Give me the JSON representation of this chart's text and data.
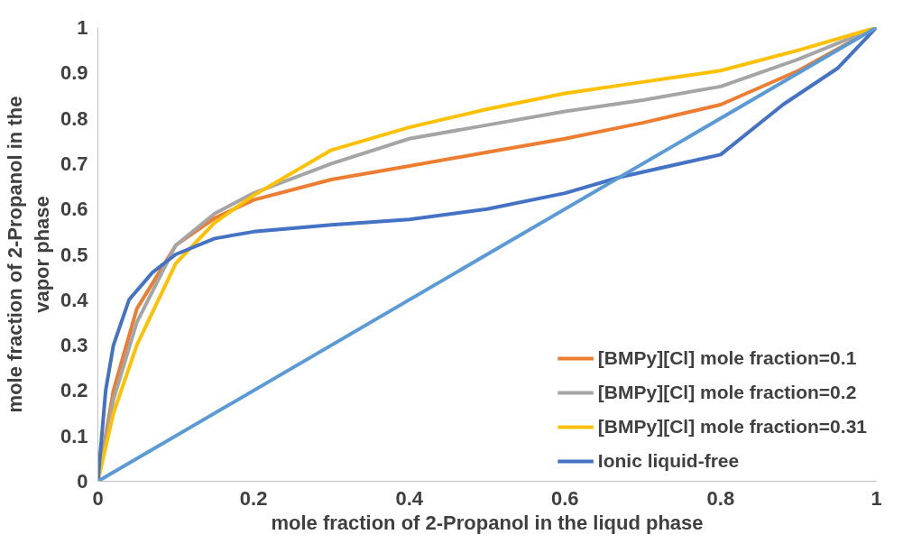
{
  "chart_data": {
    "type": "line",
    "xlabel": "mole fraction of 2-Propanol in the liqud phase",
    "ylabel": "mole fraction of 2-Propanol in the vapor phase",
    "xlim": [
      0,
      1
    ],
    "ylim": [
      0,
      1
    ],
    "xticks": [
      0,
      0.2,
      0.4,
      0.6,
      0.8,
      1
    ],
    "yticks": [
      0,
      0.1,
      0.2,
      0.3,
      0.4,
      0.5,
      0.6,
      0.7,
      0.8,
      0.9,
      1
    ],
    "grid": false,
    "legend": "bottom right",
    "marker": "none",
    "line_style": "solid",
    "series": [
      {
        "name": "[BMPy][Cl] mole fraction=0.1",
        "color": "#ed7d31",
        "x": [
          0,
          0.02,
          0.05,
          0.1,
          0.15,
          0.2,
          0.3,
          0.4,
          0.5,
          0.6,
          0.7,
          0.8,
          0.9,
          1
        ],
        "values": [
          0,
          0.2,
          0.38,
          0.52,
          0.58,
          0.62,
          0.665,
          0.695,
          0.725,
          0.755,
          0.79,
          0.83,
          0.905,
          1
        ]
      },
      {
        "name": "[BMPy][Cl] mole fraction=0.2",
        "color": "#a5a5a5",
        "x": [
          0,
          0.02,
          0.05,
          0.1,
          0.15,
          0.2,
          0.3,
          0.4,
          0.5,
          0.6,
          0.7,
          0.8,
          0.9,
          1
        ],
        "values": [
          0,
          0.18,
          0.35,
          0.52,
          0.59,
          0.635,
          0.7,
          0.755,
          0.785,
          0.815,
          0.84,
          0.87,
          0.93,
          1
        ]
      },
      {
        "name": "[BMPy][Cl] mole fraction=0.31",
        "color": "#ffc000",
        "x": [
          0,
          0.02,
          0.05,
          0.1,
          0.15,
          0.2,
          0.3,
          0.4,
          0.5,
          0.6,
          0.7,
          0.8,
          0.9,
          1
        ],
        "values": [
          0,
          0.15,
          0.3,
          0.48,
          0.57,
          0.63,
          0.73,
          0.78,
          0.82,
          0.855,
          0.88,
          0.905,
          0.95,
          1
        ]
      },
      {
        "name": "Ionic liquid-free",
        "color": "#4472c4",
        "x": [
          0,
          0.01,
          0.02,
          0.04,
          0.07,
          0.1,
          0.15,
          0.2,
          0.3,
          0.4,
          0.5,
          0.6,
          0.67,
          0.8,
          0.88,
          0.95,
          1
        ],
        "values": [
          0,
          0.2,
          0.3,
          0.4,
          0.46,
          0.5,
          0.535,
          0.55,
          0.565,
          0.577,
          0.6,
          0.635,
          0.67,
          0.72,
          0.83,
          0.91,
          1
        ]
      },
      {
        "color": "#5b9bd5",
        "x": [
          0,
          1
        ],
        "values": [
          0,
          1
        ]
      }
    ]
  }
}
